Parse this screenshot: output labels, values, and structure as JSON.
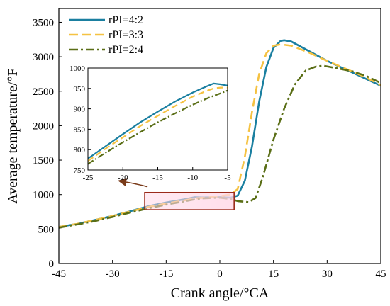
{
  "chart_data": {
    "type": "line",
    "xlabel": "Crank angle/°CA",
    "ylabel": "Average temperature/°F",
    "xlim": [
      -45,
      45
    ],
    "ylim": [
      0,
      3700
    ],
    "x_ticks": [
      -45,
      -30,
      -15,
      0,
      15,
      30,
      45
    ],
    "y_ticks": [
      0,
      500,
      1000,
      1500,
      2000,
      2500,
      3000,
      3500
    ],
    "legend_position": "top-left",
    "series": [
      {
        "name": "rPI=4:2",
        "color": "#1a7fa0",
        "style": "solid",
        "points": [
          [
            -45,
            530
          ],
          [
            -40,
            575
          ],
          [
            -35,
            630
          ],
          [
            -30,
            690
          ],
          [
            -25,
            760
          ],
          [
            -20,
            830
          ],
          [
            -15,
            885
          ],
          [
            -10,
            930
          ],
          [
            -7,
            962
          ],
          [
            -5,
            958
          ],
          [
            0,
            962
          ],
          [
            3,
            955
          ],
          [
            5,
            985
          ],
          [
            7,
            1200
          ],
          [
            9,
            1700
          ],
          [
            11,
            2350
          ],
          [
            13,
            2850
          ],
          [
            15,
            3130
          ],
          [
            17,
            3230
          ],
          [
            18,
            3240
          ],
          [
            20,
            3220
          ],
          [
            25,
            3080
          ],
          [
            30,
            2940
          ],
          [
            35,
            2820
          ],
          [
            40,
            2700
          ],
          [
            45,
            2580
          ]
        ]
      },
      {
        "name": "rPI=3:3",
        "color": "#f5c242",
        "style": "dashed",
        "points": [
          [
            -45,
            530
          ],
          [
            -40,
            575
          ],
          [
            -35,
            630
          ],
          [
            -30,
            690
          ],
          [
            -25,
            755
          ],
          [
            -20,
            820
          ],
          [
            -15,
            870
          ],
          [
            -10,
            915
          ],
          [
            -7,
            945
          ],
          [
            -5,
            952
          ],
          [
            0,
            975
          ],
          [
            3,
            1000
          ],
          [
            5,
            1080
          ],
          [
            7,
            1550
          ],
          [
            9,
            2200
          ],
          [
            11,
            2750
          ],
          [
            13,
            3050
          ],
          [
            15,
            3160
          ],
          [
            17,
            3180
          ],
          [
            20,
            3160
          ],
          [
            25,
            3060
          ],
          [
            30,
            2940
          ],
          [
            35,
            2830
          ],
          [
            40,
            2720
          ],
          [
            45,
            2590
          ]
        ]
      },
      {
        "name": "rPI=2:4",
        "color": "#5a6e16",
        "style": "dashdot",
        "points": [
          [
            -45,
            520
          ],
          [
            -40,
            565
          ],
          [
            -35,
            615
          ],
          [
            -30,
            675
          ],
          [
            -25,
            740
          ],
          [
            -20,
            800
          ],
          [
            -15,
            855
          ],
          [
            -10,
            900
          ],
          [
            -7,
            930
          ],
          [
            -5,
            945
          ],
          [
            0,
            955
          ],
          [
            3,
            935
          ],
          [
            5,
            905
          ],
          [
            8,
            890
          ],
          [
            10,
            950
          ],
          [
            12,
            1250
          ],
          [
            15,
            1800
          ],
          [
            18,
            2250
          ],
          [
            21,
            2600
          ],
          [
            24,
            2800
          ],
          [
            27,
            2860
          ],
          [
            29,
            2870
          ],
          [
            33,
            2830
          ],
          [
            37,
            2790
          ],
          [
            41,
            2720
          ],
          [
            45,
            2620
          ]
        ]
      }
    ],
    "inset": {
      "xlim": [
        -25,
        -5
      ],
      "ylim": [
        750,
        1000
      ],
      "x_ticks": [
        -25,
        -20,
        -15,
        -10,
        -5
      ],
      "y_ticks": [
        750,
        800,
        850,
        900,
        950,
        1000
      ],
      "series": [
        {
          "name": "rPI=4:2",
          "points": [
            [
              -25,
              778
            ],
            [
              -22.5,
              808
            ],
            [
              -20,
              838
            ],
            [
              -17.5,
              867
            ],
            [
              -15,
              893
            ],
            [
              -12.5,
              918
            ],
            [
              -10,
              940
            ],
            [
              -8,
              955
            ],
            [
              -7,
              962
            ],
            [
              -6,
              960
            ],
            [
              -5,
              957
            ]
          ]
        },
        {
          "name": "rPI=3:3",
          "points": [
            [
              -25,
              772
            ],
            [
              -22.5,
              802
            ],
            [
              -20,
              830
            ],
            [
              -17.5,
              858
            ],
            [
              -15,
              883
            ],
            [
              -12.5,
              907
            ],
            [
              -10,
              930
            ],
            [
              -8,
              944
            ],
            [
              -7,
              950
            ],
            [
              -6,
              952
            ],
            [
              -5,
              952
            ]
          ]
        },
        {
          "name": "rPI=2:4",
          "points": [
            [
              -25,
              765
            ],
            [
              -22.5,
              792
            ],
            [
              -20,
              818
            ],
            [
              -17.5,
              843
            ],
            [
              -15,
              867
            ],
            [
              -12.5,
              889
            ],
            [
              -10,
              910
            ],
            [
              -8,
              925
            ],
            [
              -7,
              932
            ],
            [
              -6,
              938
            ],
            [
              -5,
              945
            ]
          ]
        }
      ]
    }
  }
}
